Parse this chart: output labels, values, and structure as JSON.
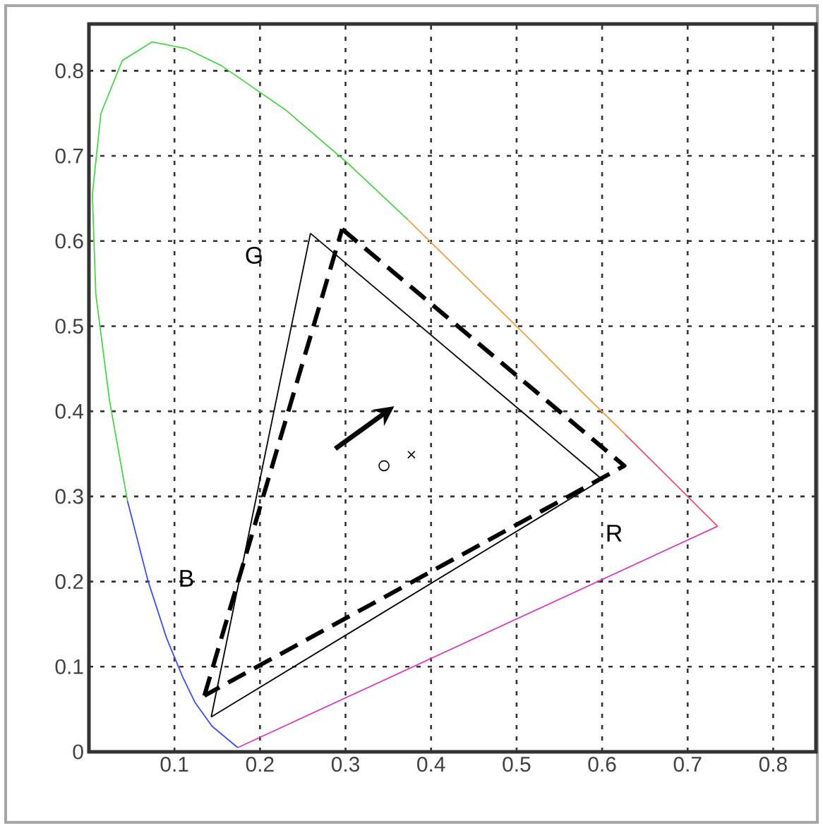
{
  "chart_data": {
    "type": "line",
    "xlim": [
      0,
      0.85
    ],
    "ylim": [
      0,
      0.855
    ],
    "xticks": [
      0.1,
      0.2,
      0.3,
      0.4,
      0.5,
      0.6,
      0.7,
      0.8
    ],
    "yticks": [
      0,
      0.1,
      0.2,
      0.3,
      0.4,
      0.5,
      0.6,
      0.7,
      0.8
    ],
    "grid": true,
    "series": [
      {
        "color": "#3b4fe0",
        "line_style": "solid",
        "x": [
          0.174,
          0.144,
          0.124,
          0.11,
          0.091,
          0.069,
          0.045
        ],
        "values": [
          0.005,
          0.03,
          0.058,
          0.087,
          0.133,
          0.201,
          0.295
        ]
      },
      {
        "color": "#4fd04f",
        "line_style": "solid",
        "x": [
          0.045,
          0.024,
          0.008,
          0.004,
          0.014,
          0.039,
          0.074,
          0.114,
          0.155,
          0.23,
          0.302,
          0.373
        ],
        "values": [
          0.295,
          0.413,
          0.538,
          0.655,
          0.75,
          0.812,
          0.834,
          0.826,
          0.806,
          0.754,
          0.692,
          0.625
        ]
      },
      {
        "color": "#e8a050",
        "line_style": "solid",
        "x": [
          0.373,
          0.444,
          0.513,
          0.575,
          0.627
        ],
        "values": [
          0.625,
          0.555,
          0.487,
          0.424,
          0.373
        ]
      },
      {
        "color": "#e8506a",
        "line_style": "solid",
        "x": [
          0.627,
          0.692,
          0.719,
          0.735
        ],
        "values": [
          0.373,
          0.308,
          0.281,
          0.265
        ]
      },
      {
        "color": "#d040c0",
        "line_style": "solid",
        "x": [
          0.735,
          0.174
        ],
        "values": [
          0.265,
          0.005
        ]
      },
      {
        "color": "#000000",
        "line_style": "solid",
        "x": [
          0.259,
          0.6,
          0.143
        ],
        "values": [
          0.609,
          0.32,
          0.041
        ]
      },
      {
        "color": "#000000",
        "line_style": "solid",
        "x": [
          0.143,
          0.259
        ],
        "values": [
          0.041,
          0.609
        ]
      },
      {
        "color": "#000000",
        "line_style": "dashed",
        "x": [
          0.296,
          0.626,
          0.135
        ],
        "values": [
          0.614,
          0.336,
          0.066
        ]
      },
      {
        "color": "#000000",
        "line_style": "dashed",
        "x": [
          0.135,
          0.296
        ],
        "values": [
          0.066,
          0.614
        ]
      },
      {
        "type": "scatter",
        "color": "#000000",
        "marker": "circle",
        "x": [
          0.345
        ],
        "values": [
          0.336
        ]
      },
      {
        "type": "scatter",
        "color": "#000000",
        "marker": "cross",
        "x": [
          0.377
        ],
        "values": [
          0.349
        ]
      }
    ],
    "annotations": [
      "G",
      "R",
      "B"
    ]
  }
}
